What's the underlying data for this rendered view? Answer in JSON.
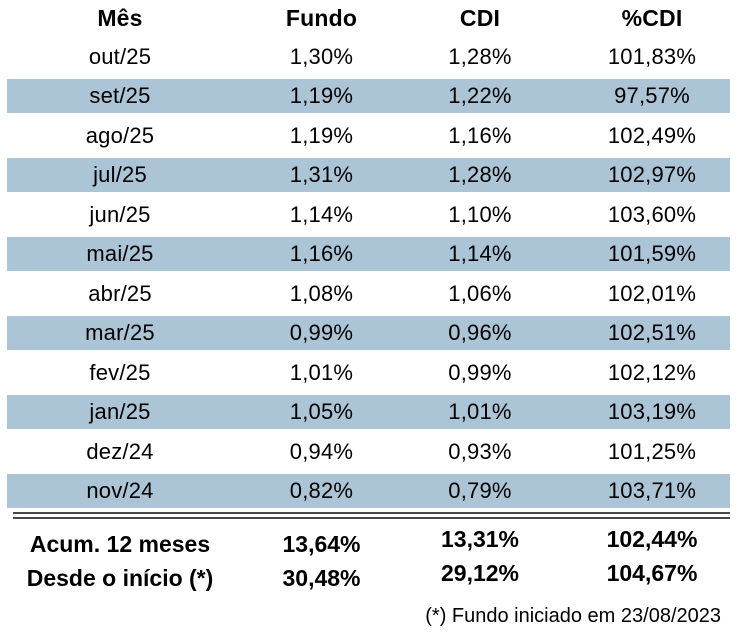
{
  "chart_data": {
    "type": "table",
    "columns": [
      "Mês",
      "Fundo",
      "CDI",
      "%CDI"
    ],
    "rows": [
      [
        "out/25",
        "1,30%",
        "1,28%",
        "101,83%"
      ],
      [
        "set/25",
        "1,19%",
        "1,22%",
        "97,57%"
      ],
      [
        "ago/25",
        "1,19%",
        "1,16%",
        "102,49%"
      ],
      [
        "jul/25",
        "1,31%",
        "1,28%",
        "102,97%"
      ],
      [
        "jun/25",
        "1,14%",
        "1,10%",
        "103,60%"
      ],
      [
        "mai/25",
        "1,16%",
        "1,14%",
        "101,59%"
      ],
      [
        "abr/25",
        "1,08%",
        "1,06%",
        "102,01%"
      ],
      [
        "mar/25",
        "0,99%",
        "0,96%",
        "102,51%"
      ],
      [
        "fev/25",
        "1,01%",
        "0,99%",
        "102,12%"
      ],
      [
        "jan/25",
        "1,05%",
        "1,01%",
        "103,19%"
      ],
      [
        "dez/24",
        "0,94%",
        "0,93%",
        "101,25%"
      ],
      [
        "nov/24",
        "0,82%",
        "0,79%",
        "103,71%"
      ]
    ],
    "summary_rows": [
      [
        "Acum. 12 meses",
        "13,64%",
        "13,31%",
        "102,44%"
      ],
      [
        "Desde o início (*)",
        "30,48%",
        "29,12%",
        "104,67%"
      ]
    ],
    "footnote": "(*) Fundo iniciado em 23/08/2023",
    "layout_hints": {
      "striped_row_months": [
        "set/25",
        "jul/25",
        "mai/25",
        "mar/25",
        "jan/25",
        "nov/24"
      ],
      "grid": "off",
      "alignment": "all columns centered"
    }
  },
  "colors": {
    "stripe": "#ABC4D6",
    "rule": "#474747",
    "text": "#000000",
    "background": "#FFFFFF"
  }
}
